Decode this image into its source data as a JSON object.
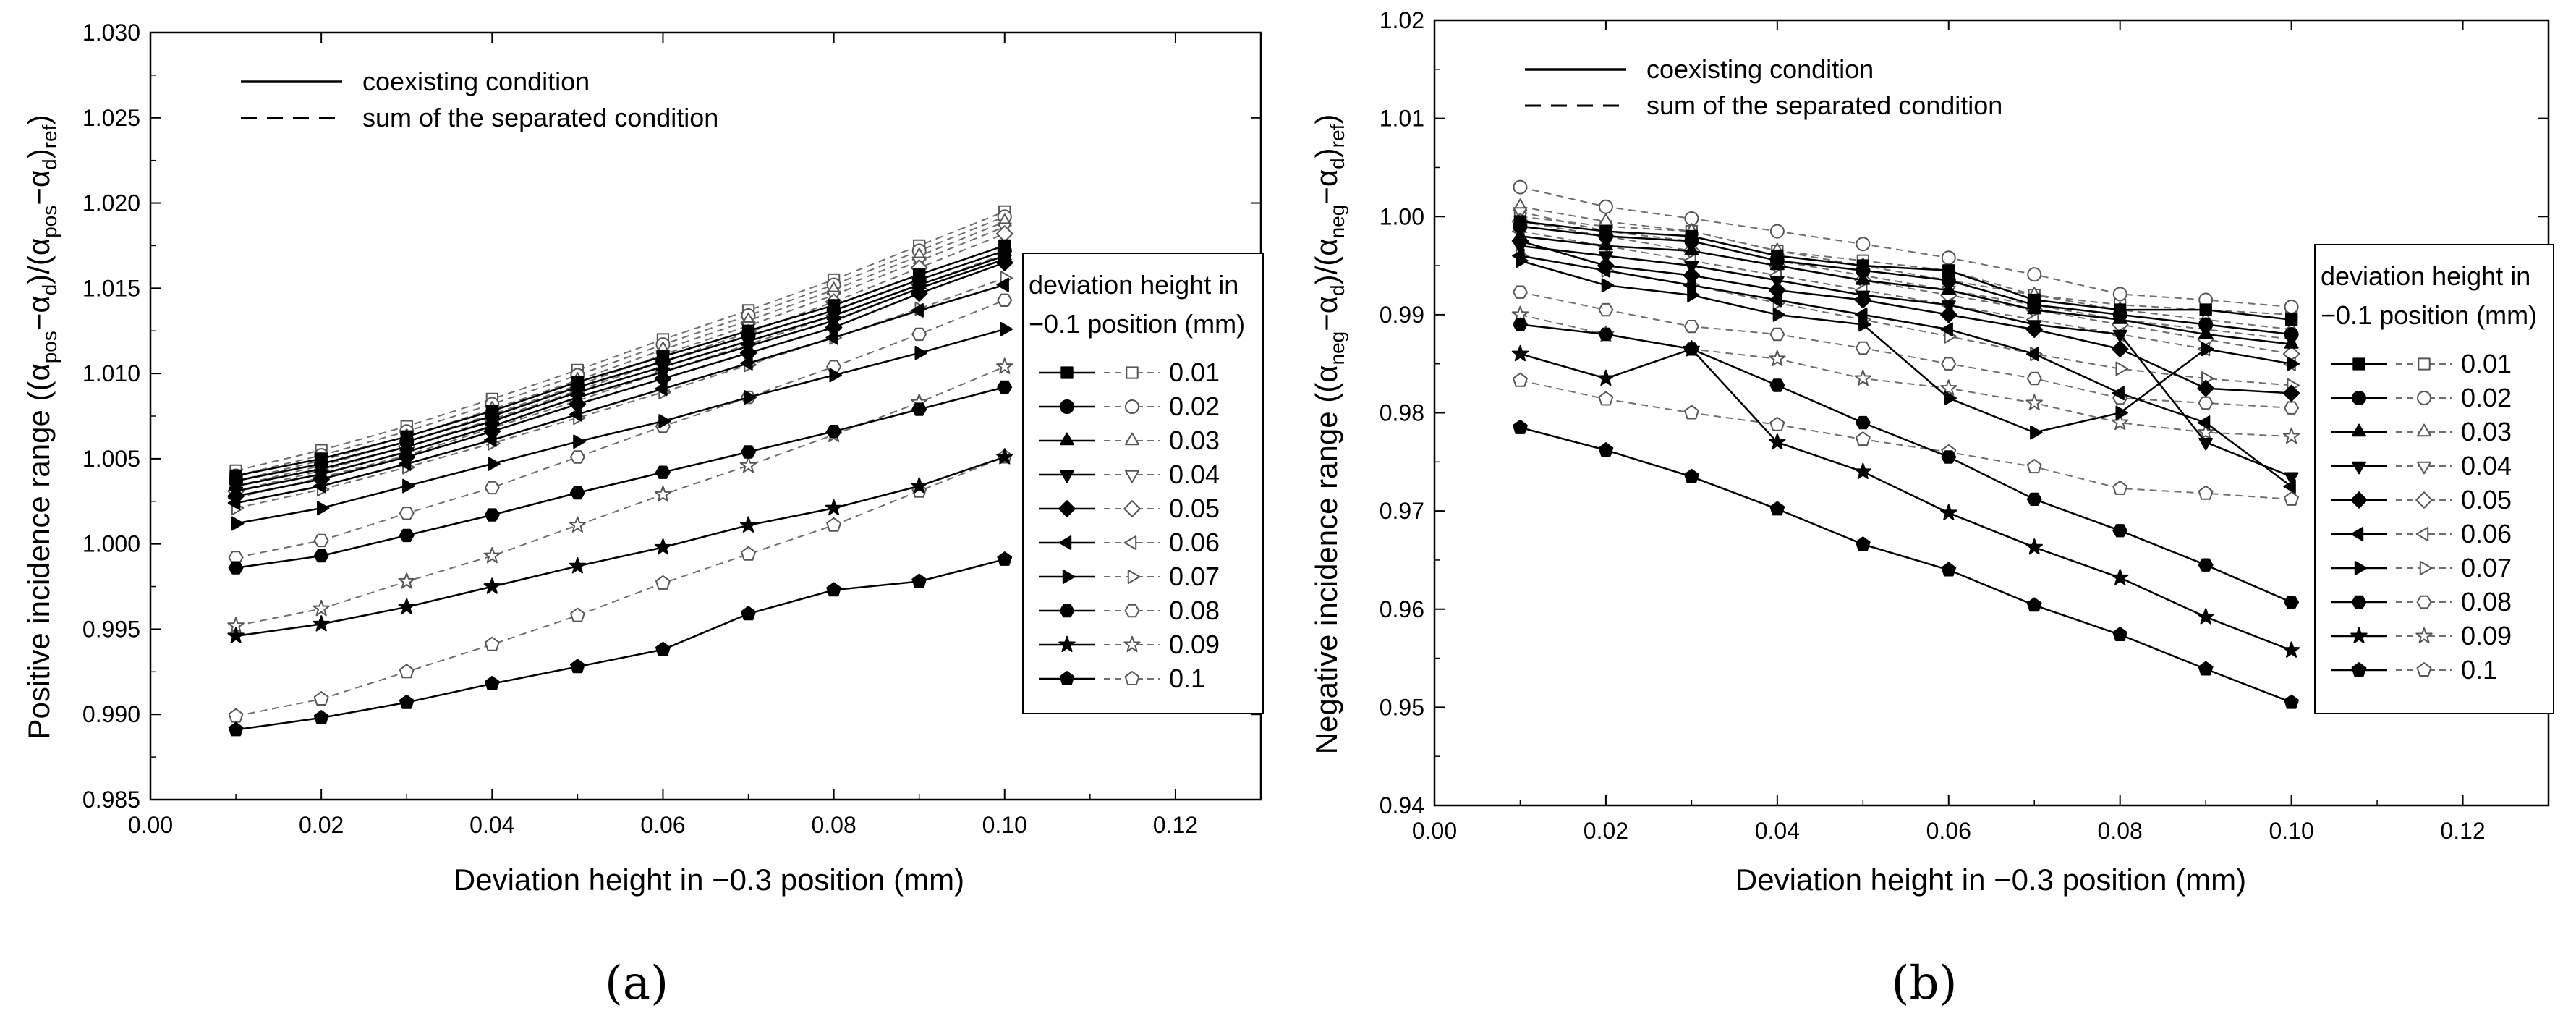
{
  "figure": {
    "panel_labels": [
      "(a)",
      "(b)"
    ]
  },
  "legend": {
    "top_solid": "coexisting condition",
    "top_dashed": "sum of the separated condition",
    "box_title_line1": "deviation height in",
    "box_title_line2": "−0.1 position (mm)",
    "entries": [
      "0.01",
      "0.02",
      "0.03",
      "0.04",
      "0.05",
      "0.06",
      "0.07",
      "0.08",
      "0.09",
      "0.1"
    ]
  },
  "chart_data": [
    {
      "type": "line",
      "panel": "(a)",
      "xlabel": "Deviation height in −0.3 position (mm)",
      "ylabel": "Positive incidence range ((α_pos−α_d)/(α_pos−α_d)_ref)",
      "xlim": [
        0.0,
        0.13
      ],
      "ylim": [
        0.985,
        1.03
      ],
      "xticks": [
        "0.00",
        "0.02",
        "0.04",
        "0.06",
        "0.08",
        "0.10",
        "0.12"
      ],
      "yticks": [
        "0.985",
        "0.990",
        "0.995",
        "1.000",
        "1.005",
        "1.010",
        "1.015",
        "1.020",
        "1.025",
        "1.030"
      ],
      "x": [
        0.01,
        0.02,
        0.03,
        0.04,
        0.05,
        0.06,
        0.07,
        0.08,
        0.09,
        0.1
      ],
      "series": [
        {
          "name": "0.01",
          "style": "solid",
          "values": [
            1.004,
            1.005,
            1.0063,
            1.0078,
            1.0095,
            1.011,
            1.0125,
            1.014,
            1.0158,
            1.0175
          ]
        },
        {
          "name": "0.02",
          "style": "solid",
          "values": [
            1.0037,
            1.0047,
            1.006,
            1.0075,
            1.0092,
            1.0107,
            1.0122,
            1.0137,
            1.0155,
            1.0172
          ]
        },
        {
          "name": "0.03",
          "style": "solid",
          "values": [
            1.0034,
            1.0044,
            1.0057,
            1.0072,
            1.0089,
            1.0104,
            1.0119,
            1.0134,
            1.0152,
            1.0169
          ]
        },
        {
          "name": "0.04",
          "style": "solid",
          "values": [
            1.0031,
            1.0041,
            1.0054,
            1.0069,
            1.0086,
            1.0101,
            1.0116,
            1.0131,
            1.015,
            1.0167
          ]
        },
        {
          "name": "0.05",
          "style": "solid",
          "values": [
            1.0028,
            1.0038,
            1.0051,
            1.0066,
            1.0082,
            1.0097,
            1.0112,
            1.0127,
            1.0147,
            1.0165
          ]
        },
        {
          "name": "0.06",
          "style": "solid",
          "values": [
            1.0024,
            1.0034,
            1.0047,
            1.0061,
            1.0076,
            1.0091,
            1.0106,
            1.0121,
            1.0137,
            1.0152
          ]
        },
        {
          "name": "0.07",
          "style": "solid",
          "values": [
            1.0012,
            1.0021,
            1.0034,
            1.0047,
            1.006,
            1.0072,
            1.0086,
            1.0099,
            1.0112,
            1.0126
          ]
        },
        {
          "name": "0.08",
          "style": "solid",
          "values": [
            0.9986,
            0.9993,
            1.0005,
            1.0017,
            1.003,
            1.0042,
            1.0054,
            1.0066,
            1.0079,
            1.0092
          ]
        },
        {
          "name": "0.09",
          "style": "solid",
          "values": [
            0.9946,
            0.9953,
            0.9963,
            0.9975,
            0.9987,
            0.9998,
            1.0011,
            1.0021,
            1.0034,
            1.0051
          ]
        },
        {
          "name": "0.1",
          "style": "solid",
          "values": [
            0.9891,
            0.9898,
            0.9907,
            0.9918,
            0.9928,
            0.9938,
            0.9959,
            0.9973,
            0.9978,
            0.9991
          ]
        },
        {
          "name": "0.01",
          "style": "dashed",
          "values": [
            1.0043,
            1.0055,
            1.0069,
            1.0085,
            1.0102,
            1.012,
            1.0137,
            1.0155,
            1.0175,
            1.0195
          ]
        },
        {
          "name": "0.02",
          "style": "dashed",
          "values": [
            1.004,
            1.0052,
            1.0066,
            1.0082,
            1.0099,
            1.0117,
            1.0134,
            1.0152,
            1.0172,
            1.0192
          ]
        },
        {
          "name": "0.03",
          "style": "dashed",
          "values": [
            1.0037,
            1.0049,
            1.0063,
            1.0079,
            1.0096,
            1.0114,
            1.0131,
            1.0149,
            1.0169,
            1.0189
          ]
        },
        {
          "name": "0.04",
          "style": "dashed",
          "values": [
            1.0034,
            1.0046,
            1.006,
            1.0076,
            1.0093,
            1.0111,
            1.0128,
            1.0146,
            1.0166,
            1.0186
          ]
        },
        {
          "name": "0.05",
          "style": "dashed",
          "values": [
            1.0031,
            1.0043,
            1.0057,
            1.0073,
            1.009,
            1.0107,
            1.0124,
            1.0142,
            1.0162,
            1.0182
          ]
        },
        {
          "name": "0.06",
          "style": "dashed",
          "values": [
            1.0027,
            1.0039,
            1.0052,
            1.0068,
            1.0084,
            1.0101,
            1.0117,
            1.0134,
            1.0152,
            1.017
          ]
        },
        {
          "name": "0.07",
          "style": "dashed",
          "values": [
            1.0021,
            1.0032,
            1.0045,
            1.0059,
            1.0074,
            1.0089,
            1.0105,
            1.0121,
            1.0138,
            1.0156
          ]
        },
        {
          "name": "0.08",
          "style": "dashed",
          "values": [
            0.9992,
            1.0002,
            1.0018,
            1.0033,
            1.0051,
            1.0069,
            1.0086,
            1.0104,
            1.0123,
            1.0143
          ]
        },
        {
          "name": "0.09",
          "style": "dashed",
          "values": [
            0.9952,
            0.9962,
            0.9978,
            0.9993,
            1.0011,
            1.0029,
            1.0046,
            1.0064,
            1.0083,
            1.0104
          ]
        },
        {
          "name": "0.1",
          "style": "dashed",
          "values": [
            0.9899,
            0.9909,
            0.9925,
            0.9941,
            0.9958,
            0.9977,
            0.9994,
            1.0011,
            1.0031,
            1.0051
          ]
        }
      ]
    },
    {
      "type": "line",
      "panel": "(b)",
      "xlabel": "Deviation height in −0.3 position (mm)",
      "ylabel": "Negative incidence range ((α_neg−α_d)/(α_neg−α_d)_ref)",
      "xlim": [
        0.0,
        0.13
      ],
      "ylim": [
        0.94,
        1.02
      ],
      "xticks": [
        "0.00",
        "0.02",
        "0.04",
        "0.06",
        "0.08",
        "0.10",
        "0.12"
      ],
      "yticks": [
        "0.94",
        "0.95",
        "0.96",
        "0.97",
        "0.98",
        "0.99",
        "1.00",
        "1.01",
        "1.02"
      ],
      "x": [
        0.01,
        0.02,
        0.03,
        0.04,
        0.05,
        0.06,
        0.07,
        0.08,
        0.09,
        0.1
      ],
      "series": [
        {
          "name": "0.01",
          "style": "solid",
          "values": [
            0.9995,
            0.9985,
            0.998,
            0.996,
            0.995,
            0.9945,
            0.9915,
            0.9905,
            0.9905,
            0.9895
          ]
        },
        {
          "name": "0.02",
          "style": "solid",
          "values": [
            0.999,
            0.998,
            0.9975,
            0.9955,
            0.9945,
            0.9935,
            0.991,
            0.99,
            0.989,
            0.988
          ]
        },
        {
          "name": "0.03",
          "style": "solid",
          "values": [
            0.998,
            0.997,
            0.9965,
            0.995,
            0.9935,
            0.9925,
            0.9905,
            0.9895,
            0.988,
            0.987
          ]
        },
        {
          "name": "0.04",
          "style": "solid",
          "values": [
            0.997,
            0.996,
            0.995,
            0.9935,
            0.992,
            0.991,
            0.989,
            0.988,
            0.977,
            0.9735
          ]
        },
        {
          "name": "0.05",
          "style": "solid",
          "values": [
            0.9975,
            0.995,
            0.994,
            0.9925,
            0.9915,
            0.99,
            0.9885,
            0.9865,
            0.9825,
            0.982
          ]
        },
        {
          "name": "0.06",
          "style": "solid",
          "values": [
            0.996,
            0.9945,
            0.993,
            0.9915,
            0.99,
            0.9885,
            0.986,
            0.982,
            0.979,
            0.9725
          ]
        },
        {
          "name": "0.07",
          "style": "solid",
          "values": [
            0.9955,
            0.993,
            0.992,
            0.99,
            0.989,
            0.9815,
            0.978,
            0.98,
            0.9865,
            0.985
          ]
        },
        {
          "name": "0.08",
          "style": "solid",
          "values": [
            0.989,
            0.988,
            0.9865,
            0.9828,
            0.979,
            0.9755,
            0.9712,
            0.968,
            0.9645,
            0.9607
          ]
        },
        {
          "name": "0.09",
          "style": "solid",
          "values": [
            0.986,
            0.9835,
            0.9865,
            0.977,
            0.974,
            0.9698,
            0.9663,
            0.9632,
            0.9592,
            0.9558
          ]
        },
        {
          "name": "0.1",
          "style": "solid",
          "values": [
            0.9785,
            0.9762,
            0.9735,
            0.9702,
            0.9666,
            0.964,
            0.9604,
            0.9574,
            0.9539,
            0.9505
          ]
        },
        {
          "name": "0.01",
          "style": "dashed",
          "values": [
            1.0,
            0.999,
            0.9985,
            0.9965,
            0.9955,
            0.9945,
            0.992,
            0.991,
            0.9905,
            0.99
          ]
        },
        {
          "name": "0.02",
          "style": "dashed",
          "values": [
            1.003,
            1.001,
            0.9998,
            0.9985,
            0.9972,
            0.9958,
            0.9941,
            0.9921,
            0.9915,
            0.9908
          ]
        },
        {
          "name": "0.03",
          "style": "dashed",
          "values": [
            1.001,
            0.9995,
            0.9985,
            0.9965,
            0.995,
            0.9935,
            0.992,
            0.9905,
            0.9895,
            0.9885
          ]
        },
        {
          "name": "0.04",
          "style": "dashed",
          "values": [
            1.0005,
            0.9985,
            0.9975,
            0.9955,
            0.994,
            0.9925,
            0.991,
            0.9895,
            0.9885,
            0.9875
          ]
        },
        {
          "name": "0.05",
          "style": "dashed",
          "values": [
            0.9995,
            0.998,
            0.9965,
            0.995,
            0.9935,
            0.992,
            0.9905,
            0.989,
            0.9875,
            0.986
          ]
        },
        {
          "name": "0.06",
          "style": "dashed",
          "values": [
            0.9985,
            0.997,
            0.9955,
            0.994,
            0.9925,
            0.991,
            0.9895,
            0.988,
            0.9865,
            0.985
          ]
        },
        {
          "name": "0.07",
          "style": "dashed",
          "values": [
            0.996,
            0.9945,
            0.993,
            0.9912,
            0.9895,
            0.9878,
            0.986,
            0.9845,
            0.9835,
            0.9828
          ]
        },
        {
          "name": "0.08",
          "style": "dashed",
          "values": [
            0.9923,
            0.9905,
            0.9888,
            0.988,
            0.9866,
            0.985,
            0.9835,
            0.9815,
            0.981,
            0.9805
          ]
        },
        {
          "name": "0.09",
          "style": "dashed",
          "values": [
            0.99,
            0.988,
            0.9865,
            0.9855,
            0.9835,
            0.9825,
            0.981,
            0.979,
            0.978,
            0.9776
          ]
        },
        {
          "name": "0.1",
          "style": "dashed",
          "values": [
            0.9833,
            0.9814,
            0.98,
            0.9788,
            0.9773,
            0.976,
            0.9745,
            0.9723,
            0.9718,
            0.9712
          ]
        }
      ]
    }
  ]
}
